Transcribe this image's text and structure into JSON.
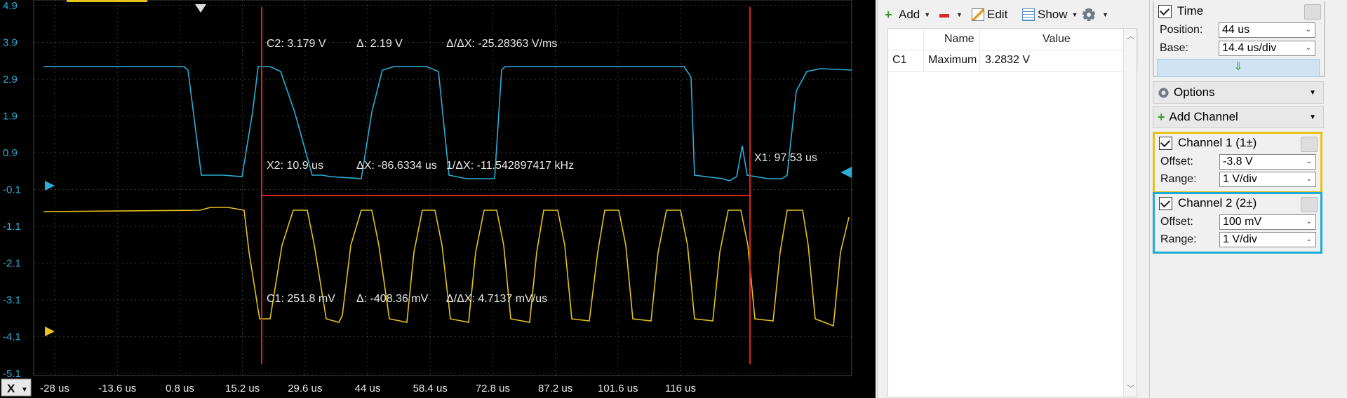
{
  "scope": {
    "y_ticks": [
      "4.9",
      "3.9",
      "2.9",
      "1.9",
      "0.9",
      "-0.1",
      "-1.1",
      "-2.1",
      "-3.1",
      "-4.1",
      "-5.1"
    ],
    "x_ticks": [
      "-28 us",
      "-13.6 us",
      "0.8 us",
      "15.2 us",
      "29.6 us",
      "44 us",
      "58.4 us",
      "72.8 us",
      "87.2 us",
      "101.6 us",
      "116 us"
    ],
    "axis_button": "X",
    "cursor_readouts": {
      "c2": "C2: 3.179 V",
      "c2_delta": "Δ: 2.19 V",
      "c2_slope": "Δ/ΔX: -25.28363 V/ms",
      "x2": "X2: 10.9 us",
      "dx": "ΔX: -86.6334 us",
      "inv_dx": "1/ΔX: -11.542897417 kHz",
      "x1": "X1: 97.53 us",
      "c1": "C1: 251.8 mV",
      "c1_delta": "Δ: -408.36 mV",
      "c1_slope": "Δ/ΔX: 4.7137 mV/us"
    },
    "colors": {
      "channel1": "#e6c21a",
      "channel2": "#2aaed8",
      "cursor": "#e0201a",
      "grid": "#3a3a3a"
    }
  },
  "measurements": {
    "toolbar": {
      "add": "Add",
      "edit": "Edit",
      "show": "Show"
    },
    "columns": [
      "Name",
      "Value"
    ],
    "rows": [
      {
        "channel": "C1",
        "name": "Maximum",
        "value": "3.2832 V"
      }
    ]
  },
  "time": {
    "title": "Time",
    "position_label": "Position:",
    "position_value": "44 us",
    "base_label": "Base:",
    "base_value": "14.4 us/div"
  },
  "options_label": "Options",
  "add_channel_label": "Add Channel",
  "channel1": {
    "title": "Channel 1 (1±)",
    "offset_label": "Offset:",
    "offset_value": "-3.8 V",
    "range_label": "Range:",
    "range_value": "1 V/div"
  },
  "channel2": {
    "title": "Channel 2 (2±)",
    "offset_label": "Offset:",
    "offset_value": "100 mV",
    "range_label": "Range:",
    "range_value": "1 V/div"
  }
}
